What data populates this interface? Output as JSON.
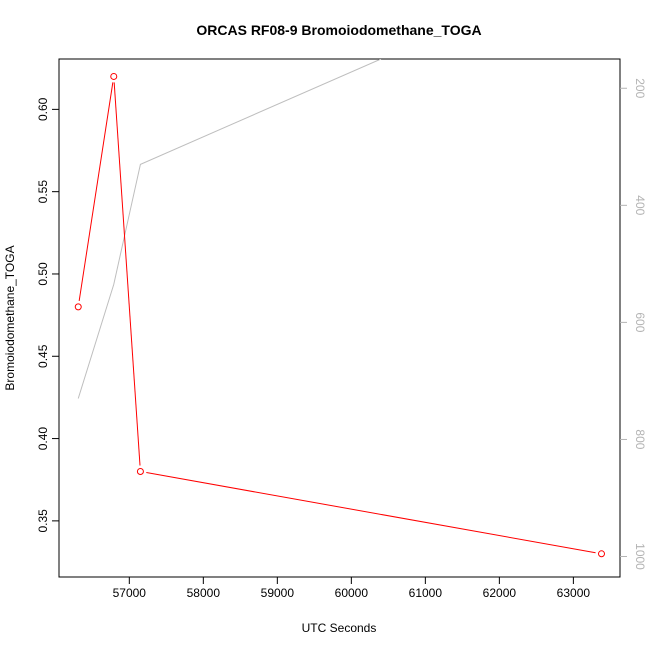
{
  "chart_data": {
    "type": "line",
    "title": "ORCAS RF08-9 Bromoiodomethane_TOGA",
    "xlabel": "UTC Seconds",
    "ylabel": "Bromoiodomethane_TOGA",
    "xlim": [
      56050,
      63630
    ],
    "ylim": [
      0.3159,
      0.6306
    ],
    "x_ticks": [
      57000,
      58000,
      59000,
      60000,
      61000,
      62000,
      63000
    ],
    "y_ticks": [
      0.35,
      0.4,
      0.45,
      0.5,
      0.55,
      0.6
    ],
    "y_tick_labels": [
      "0.35",
      "0.40",
      "0.45",
      "0.50",
      "0.55",
      "0.60"
    ],
    "y2lim": [
      1035,
      150
    ],
    "y2_ticks": [
      200,
      400,
      600,
      800,
      1000
    ],
    "series": [
      {
        "color": "#ff0000",
        "markers": true,
        "x": [
          56310,
          56790,
          57150,
          63380
        ],
        "y": [
          0.48,
          0.62,
          0.38,
          0.33
        ]
      },
      {
        "color": "#bebebe",
        "markers": false,
        "axis": "right",
        "x": [
          56310,
          56790,
          57150,
          60400
        ],
        "y": [
          730,
          535,
          330,
          150
        ]
      }
    ]
  }
}
